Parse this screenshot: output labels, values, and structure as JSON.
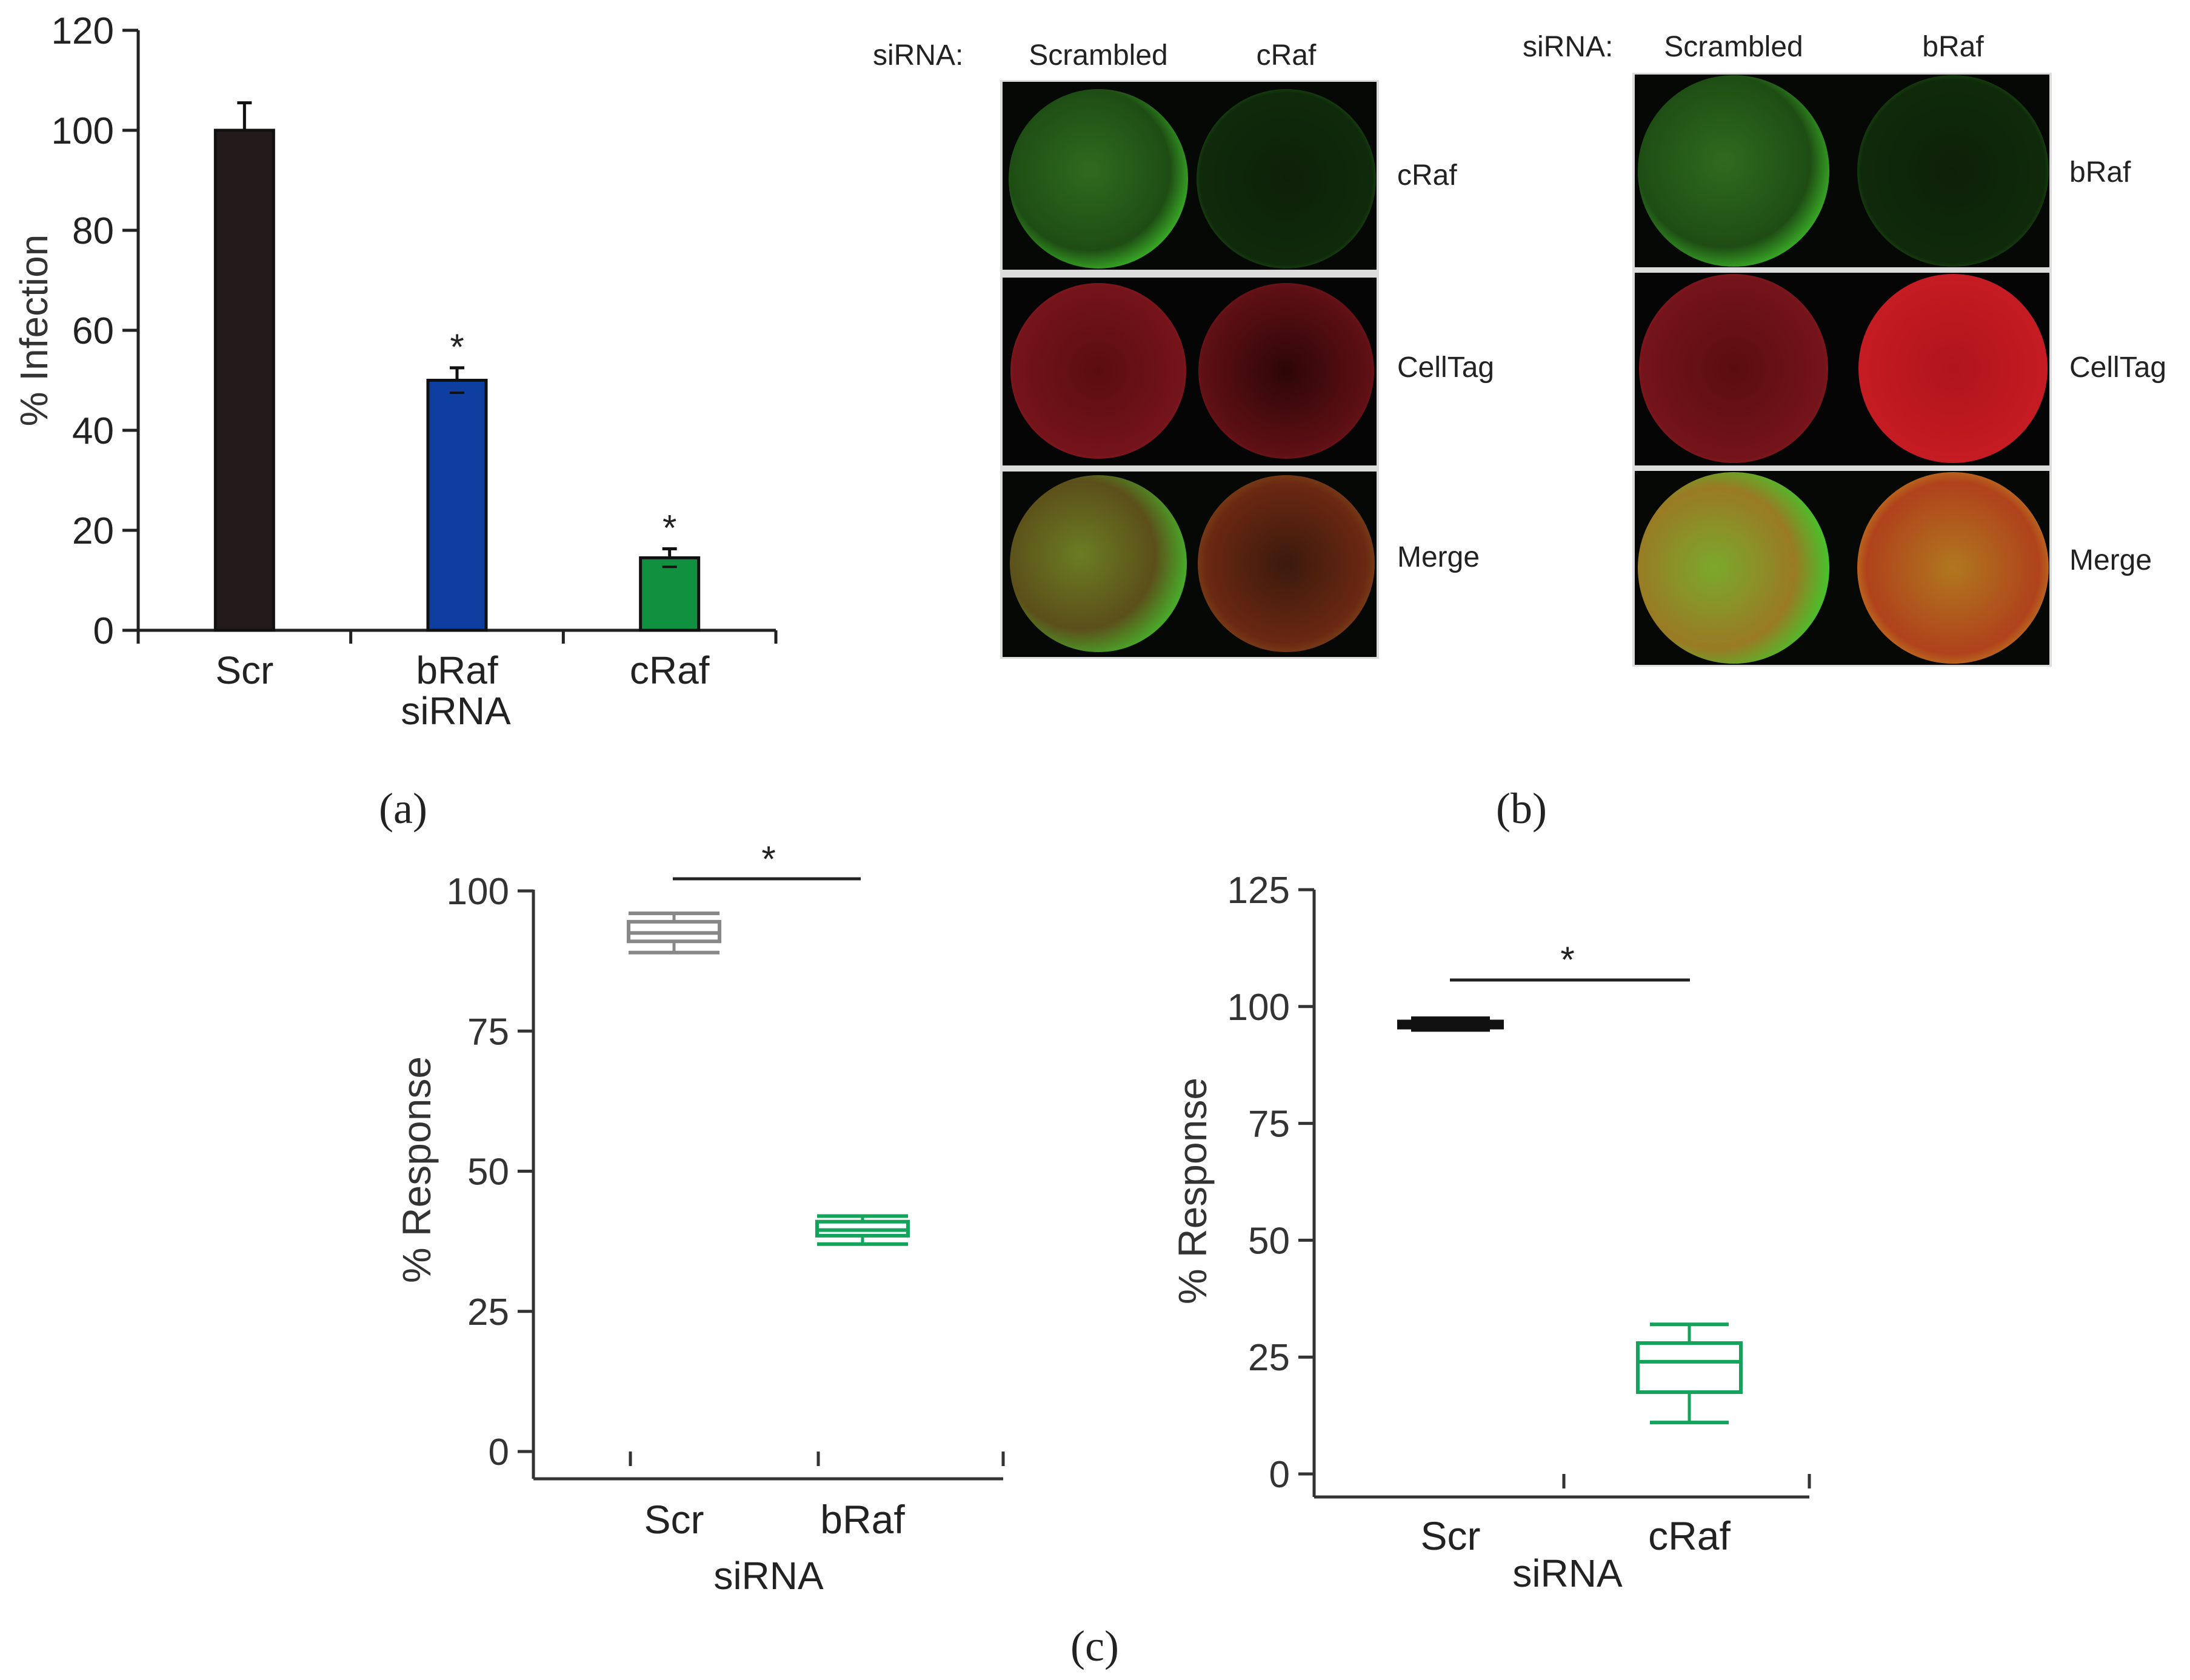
{
  "panel_labels": {
    "a": "(a)",
    "b": "(b)",
    "c": "(c)"
  },
  "chart_data": [
    {
      "type": "bar",
      "panel": "a",
      "categories": [
        "Scr",
        "bRaf",
        "cRaf"
      ],
      "values": [
        100,
        50,
        14.5
      ],
      "errors": [
        5.5,
        2.5,
        1.8
      ],
      "significance": [
        "",
        "*",
        "*"
      ],
      "bar_colors": [
        "#231b1b",
        "#0d3ea0",
        "#10913f"
      ],
      "xlabel": "siRNA",
      "ylabel": "% Infection",
      "ylim": [
        0,
        120
      ],
      "yticks": [
        0,
        20,
        40,
        60,
        80,
        100,
        120
      ]
    },
    {
      "type": "box",
      "panel": "c-left",
      "categories": [
        "Scr",
        "bRaf"
      ],
      "boxes": [
        {
          "min": 89,
          "q1": 91,
          "median": 92.5,
          "q3": 94.5,
          "max": 96,
          "color": "#888888"
        },
        {
          "min": 37,
          "q1": 38.5,
          "median": 39.5,
          "q3": 41,
          "max": 42,
          "color": "#13a35a"
        }
      ],
      "significance": "*",
      "xlabel": "siRNA",
      "ylabel": "% Response",
      "ylim": [
        0,
        100
      ],
      "yticks": [
        0,
        25,
        50,
        75,
        100
      ]
    },
    {
      "type": "box",
      "panel": "c-right",
      "categories": [
        "Scr",
        "cRaf"
      ],
      "boxes": [
        {
          "min": 95,
          "q1": 95.5,
          "median": 96,
          "q3": 96.8,
          "max": 97.5,
          "color": "#111111"
        },
        {
          "min": 11,
          "q1": 17.5,
          "median": 24,
          "q3": 28,
          "max": 32,
          "color": "#13a35a"
        }
      ],
      "significance": "*",
      "xlabel": "siRNA",
      "ylabel": "% Response",
      "ylim": [
        0,
        125
      ],
      "yticks": [
        0,
        25,
        50,
        75,
        100,
        125
      ]
    }
  ],
  "images": {
    "left": {
      "sirna_label": "siRNA:",
      "columns": [
        "Scrambled",
        "cRaf"
      ],
      "rows": [
        "cRaf",
        "CellTag",
        "Merge"
      ]
    },
    "right": {
      "sirna_label": "siRNA:",
      "columns": [
        "Scrambled",
        "bRaf"
      ],
      "rows": [
        "bRaf",
        "CellTag",
        "Merge"
      ]
    }
  }
}
